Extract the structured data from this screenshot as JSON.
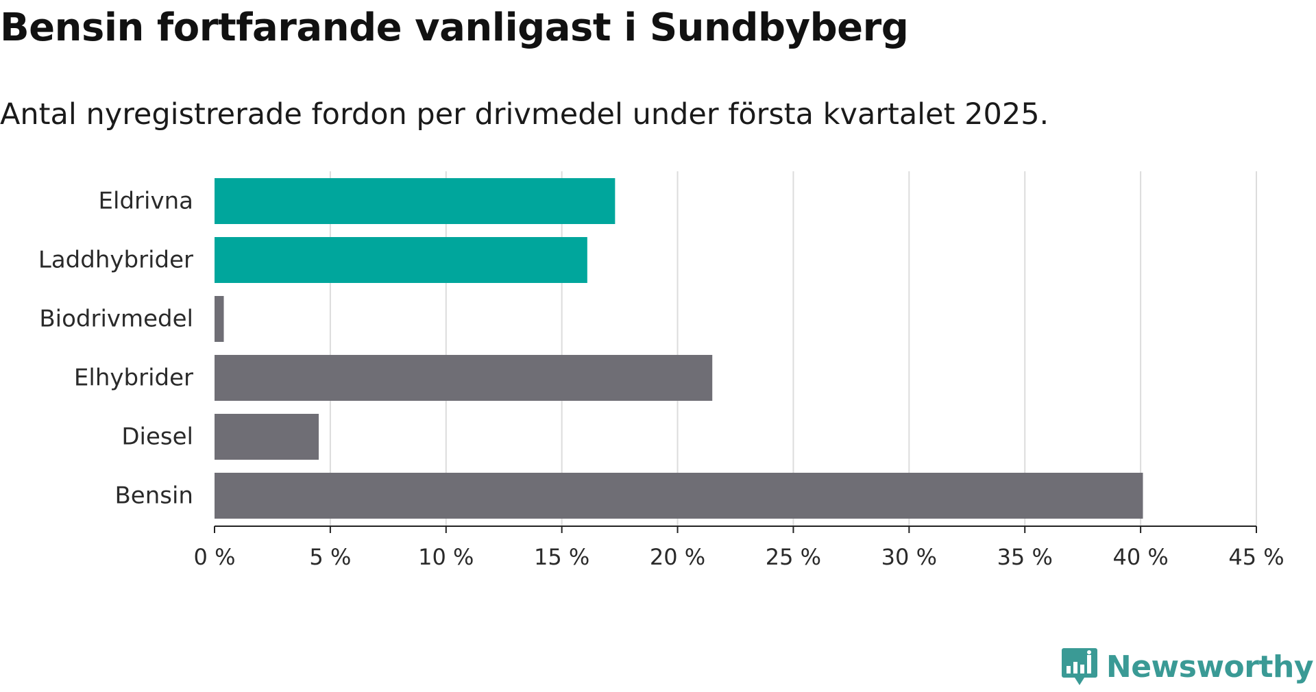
{
  "header": {
    "title": "Bensin fortfarande vanligast i Sundbyberg",
    "subtitle": "Antal nyregistrerade fordon per drivmedel under första kvartalet 2025."
  },
  "brand": {
    "name": "Newsworthy",
    "icon": "newsworthy-logo-icon",
    "color": "#3a9a95"
  },
  "chart_data": {
    "type": "bar",
    "orientation": "horizontal",
    "categories": [
      "Eldrivna",
      "Laddhybrider",
      "Biodrivmedel",
      "Elhybrider",
      "Diesel",
      "Bensin"
    ],
    "values": [
      17.3,
      16.1,
      0.4,
      21.5,
      4.5,
      40.1
    ],
    "colors": [
      "#00a69c",
      "#00a69c",
      "#6f6e75",
      "#6f6e75",
      "#6f6e75",
      "#6f6e75"
    ],
    "xlim": [
      0,
      45
    ],
    "xticks": [
      0,
      5,
      10,
      15,
      20,
      25,
      30,
      35,
      40,
      45
    ],
    "tick_suffix": " %",
    "grid": "vertical",
    "xlabel": "",
    "ylabel": ""
  }
}
